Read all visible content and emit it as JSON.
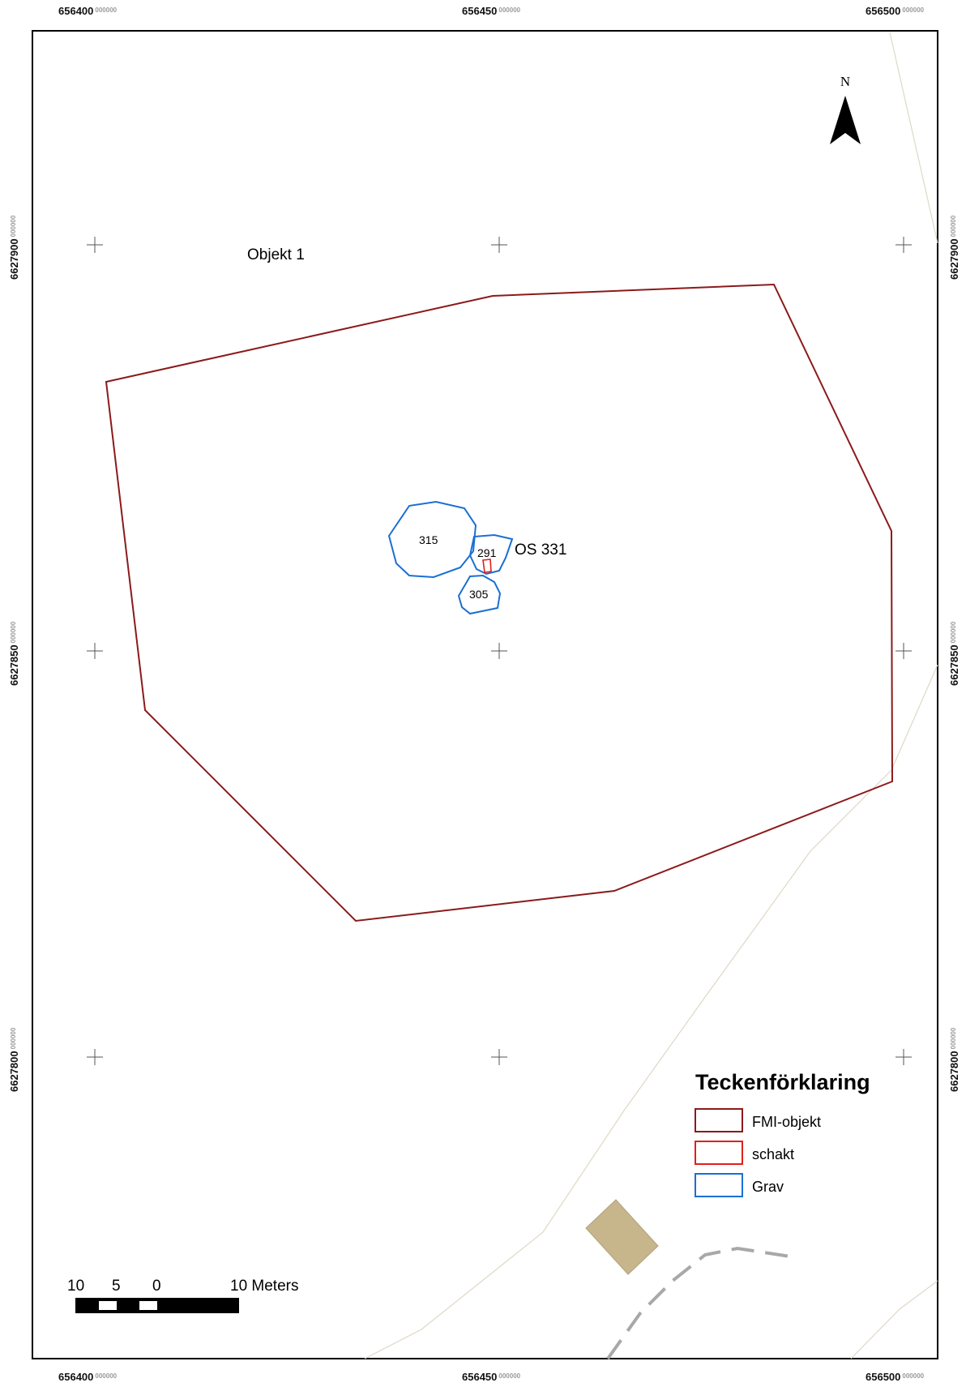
{
  "north_arrow": {
    "letter": "N"
  },
  "grid": {
    "x_ticks": [
      {
        "value": "656400",
        "decimals": "000000"
      },
      {
        "value": "656450",
        "decimals": "000000"
      },
      {
        "value": "656500",
        "decimals": "000000"
      }
    ],
    "y_ticks": [
      {
        "value": "6627900",
        "decimals": "000000"
      },
      {
        "value": "6627850",
        "decimals": "000000"
      },
      {
        "value": "6627800",
        "decimals": "000000"
      }
    ]
  },
  "labels": {
    "object": "Objekt 1",
    "os": "OS 331",
    "grave_315": "315",
    "grave_291": "291",
    "grave_305": "305"
  },
  "legend": {
    "title": "Teckenförklaring",
    "items": [
      {
        "label": "FMI-objekt",
        "color": "#8b1a1a"
      },
      {
        "label": "schakt",
        "color": "#e0201c"
      },
      {
        "label": "Grav",
        "color": "#1a6fd4"
      }
    ]
  },
  "scalebar": {
    "labels": [
      "10",
      "5",
      "0",
      "10 Meters"
    ]
  },
  "colors": {
    "fmi": "#8b1a1a",
    "schakt": "#e0201c",
    "grav": "#1a6fd4",
    "building": "#c7b68c",
    "road": "#a8a8a8",
    "background_lines": "#ded8c6"
  }
}
